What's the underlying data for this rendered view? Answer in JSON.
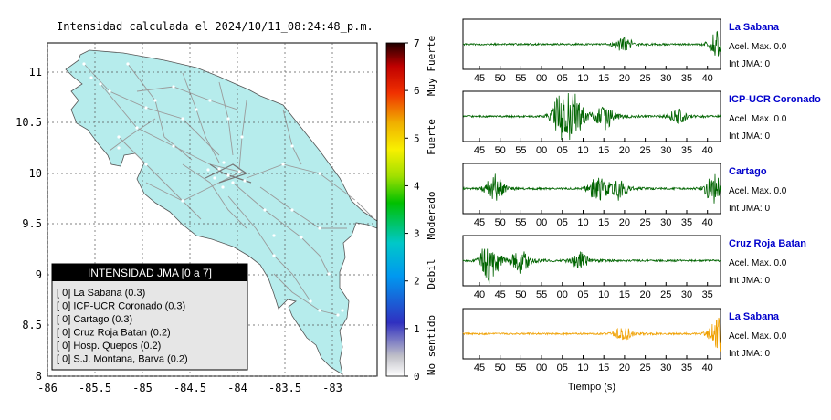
{
  "map": {
    "title": "Intensidad calculada el 2024/10/11_08:24:48_p.m.",
    "x_ticks": [
      "-86",
      "-85.5",
      "-85",
      "-84.5",
      "-84",
      "-83.5",
      "-83"
    ],
    "y_ticks": [
      "11",
      "10.5",
      "10",
      "9.5",
      "9",
      "8.5",
      "8"
    ],
    "land_color": "#b6ecec",
    "legend": {
      "title": "INTENSIDAD JMA [0 a 7]",
      "items": [
        "[ 0]  La Sabana (0.3)",
        "[ 0]  ICP-UCR Coronado (0.3)",
        "[ 0]  Cartago (0.3)",
        "[ 0]  Cruz Roja Batan (0.2)",
        "[ 0]  Hosp. Quepos (0.2)",
        "[ 0]  S.J. Montana, Barva (0.2)"
      ]
    }
  },
  "colorbar": {
    "ticks": [
      "7",
      "6",
      "5",
      "4",
      "3",
      "2",
      "1",
      "0"
    ],
    "labels": [
      "Muy Fuerte",
      "Fuerte",
      "Moderado",
      "Debil",
      "No sentido"
    ]
  },
  "waveforms": {
    "xlabel": "Tiempo (s)",
    "trace_color": "#006400",
    "highlight_color": "#f0a000",
    "name_color": "#0000cc",
    "panels": [
      {
        "name": "La Sabana",
        "acel": "Acel. Max. 0.0",
        "int": "Int JMA: 0",
        "ticks": [
          "45",
          "50",
          "55",
          "00",
          "05",
          "10",
          "15",
          "20",
          "25",
          "30",
          "35",
          "40"
        ]
      },
      {
        "name": "ICP-UCR Coronado",
        "acel": "Acel. Max. 0.0",
        "int": "Int JMA: 0",
        "ticks": [
          "45",
          "50",
          "55",
          "00",
          "05",
          "10",
          "15",
          "20",
          "25",
          "30",
          "35",
          "40"
        ]
      },
      {
        "name": "Cartago",
        "acel": "Acel. Max. 0.0",
        "int": "Int JMA: 0",
        "ticks": [
          "45",
          "50",
          "55",
          "00",
          "05",
          "10",
          "15",
          "20",
          "25",
          "30",
          "35",
          "40"
        ]
      },
      {
        "name": "Cruz Roja Batan",
        "acel": "Acel. Max. 0.0",
        "int": "Int JMA: 0",
        "ticks": [
          "40",
          "45",
          "50",
          "55",
          "00",
          "05",
          "10",
          "15",
          "20",
          "25",
          "30",
          "35"
        ]
      },
      {
        "name": "La Sabana",
        "acel": "Acel. Max. 0.0",
        "int": "Int JMA: 0",
        "ticks": [
          "45",
          "50",
          "55",
          "00",
          "05",
          "10",
          "15",
          "20",
          "25",
          "30",
          "35",
          "40"
        ]
      }
    ]
  }
}
